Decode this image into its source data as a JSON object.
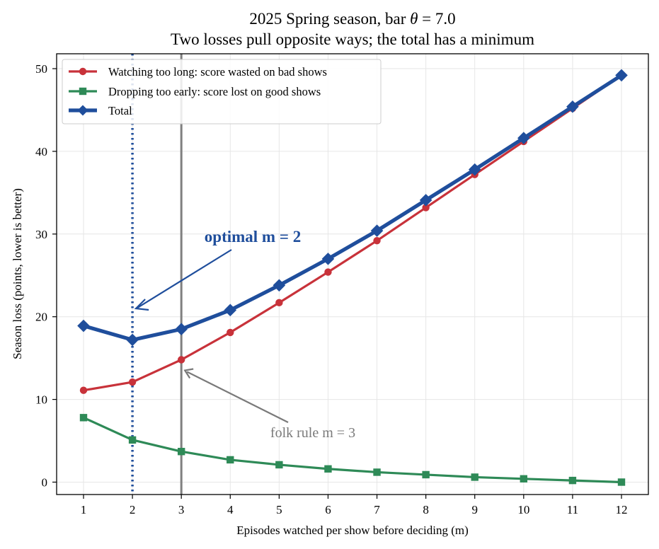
{
  "chart_data": {
    "type": "line",
    "title_line1_prefix": "2025 Spring season, bar ",
    "title_line1_symbol": "θ",
    "title_line1_suffix": " = 7.0",
    "title_line2": "Two losses pull opposite ways; the total has a minimum",
    "xlabel": "Episodes watched per show before deciding (m)",
    "ylabel": "Season loss (points, lower is better)",
    "x": [
      1,
      2,
      3,
      4,
      5,
      6,
      7,
      8,
      9,
      10,
      11,
      12
    ],
    "xlim": [
      0.45,
      12.55
    ],
    "ylim": [
      -1.5,
      51.8
    ],
    "xticks": [
      "1",
      "2",
      "3",
      "4",
      "5",
      "6",
      "7",
      "8",
      "9",
      "10",
      "11",
      "12"
    ],
    "yticks": [
      "0",
      "10",
      "20",
      "30",
      "40",
      "50"
    ],
    "grid": true,
    "legend_position": "top-left",
    "series": [
      {
        "name": "Watching too long: score wasted on bad shows",
        "color": "#c8323a",
        "marker": "circle",
        "values": [
          11.1,
          12.1,
          14.8,
          18.1,
          21.7,
          25.4,
          29.2,
          33.2,
          37.2,
          41.2,
          45.2,
          49.2
        ]
      },
      {
        "name": "Dropping too early: score lost on good shows",
        "color": "#2e8a57",
        "marker": "square",
        "values": [
          7.8,
          5.1,
          3.7,
          2.7,
          2.1,
          1.6,
          1.2,
          0.9,
          0.6,
          0.4,
          0.2,
          0.0
        ]
      },
      {
        "name": "Total",
        "color": "#1f4e9c",
        "marker": "diamond",
        "values": [
          18.9,
          17.2,
          18.5,
          20.8,
          23.8,
          27.0,
          30.4,
          34.1,
          37.8,
          41.6,
          45.4,
          49.2
        ]
      }
    ],
    "reference_lines": [
      {
        "x": 2,
        "style": "dotted",
        "color": "#1f4e9c"
      },
      {
        "x": 3,
        "style": "solid",
        "color": "#808080"
      }
    ],
    "annotations": [
      {
        "text": "optimal m = 2",
        "color": "#1f4e9c",
        "point": [
          2,
          21
        ]
      },
      {
        "text": "folk rule m = 3",
        "color": "#7a7a7a",
        "point": [
          3,
          13.6
        ]
      }
    ]
  }
}
